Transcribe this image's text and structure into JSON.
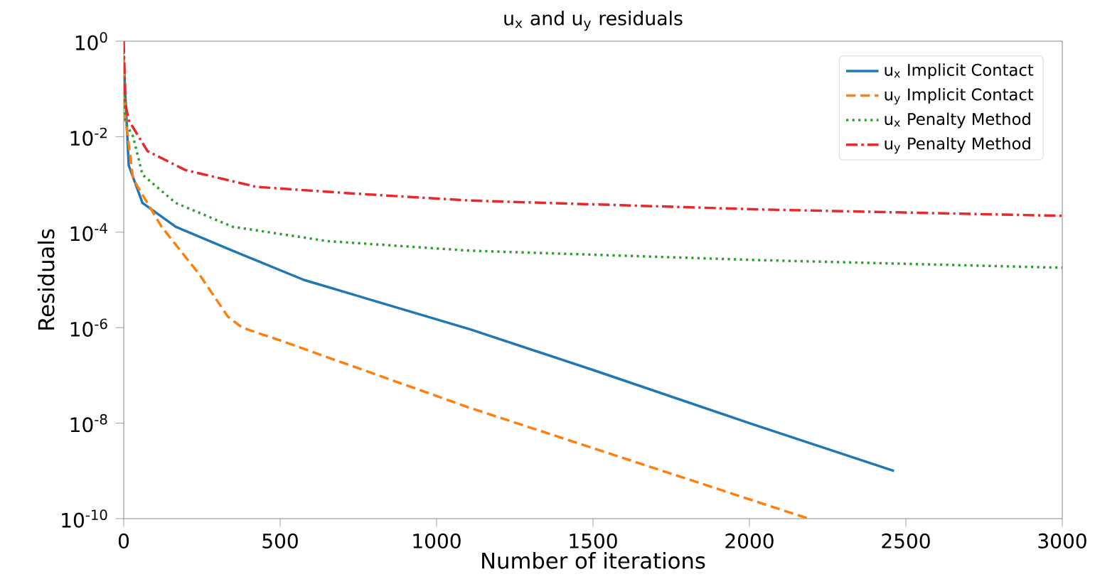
{
  "chart_data": {
    "type": "line",
    "title": "u$_{x}$ and u$_{y}$ residuals",
    "xlabel": "Number of iterations",
    "ylabel": "Residuals",
    "log": "y",
    "legend": "top right",
    "grid": false,
    "marker": "none",
    "xlim": [
      0,
      3000
    ],
    "xticks": [
      0,
      500,
      1000,
      1500,
      2000,
      2500,
      3000
    ],
    "ylim": [
      1e-10,
      1
    ],
    "yticks": [
      {
        "value": 1e-10,
        "label": "10$^{-10}$"
      },
      {
        "value": 1e-08,
        "label": "10$^{-8}$"
      },
      {
        "value": 1e-06,
        "label": "10$^{-6}$"
      },
      {
        "value": 0.0001,
        "label": "10$^{-4}$"
      },
      {
        "value": 0.01,
        "label": "10$^{-2}$"
      },
      {
        "value": 1,
        "label": "10$^{0}$"
      }
    ],
    "series": [
      {
        "name": "u$_{x}$ Implicit Contact",
        "color": "#1f77b4",
        "line_style": "solid",
        "x": [
          0,
          5,
          16,
          60,
          166,
          348,
          576,
          1106,
          1500,
          2000,
          2462
        ],
        "values": [
          0.5,
          0.078,
          0.0025,
          0.00041,
          0.00013,
          4.1e-05,
          1e-05,
          9.3e-07,
          1.3e-07,
          1e-08,
          1e-09
        ]
      },
      {
        "name": "u$_{y}$ Implicit Contact",
        "color": "#ff7f0e",
        "line_style": "dashed",
        "x": [
          0,
          5,
          30,
          121,
          242,
          333,
          379,
          500,
          1106,
          1500,
          2189
        ],
        "values": [
          0.5,
          0.025,
          0.0013,
          0.00013,
          1.3e-05,
          1.7e-06,
          1e-06,
          5.4e-07,
          2.1e-08,
          3e-09,
          1e-10
        ]
      },
      {
        "name": "u$_{x}$ Penalty Method",
        "color": "#2ca02c",
        "line_style": "dotted",
        "x": [
          0,
          5,
          30,
          60,
          166,
          348,
          651,
          1106,
          2030,
          3000
        ],
        "values": [
          0.6,
          0.02,
          0.01,
          0.0016,
          0.00041,
          0.00013,
          6.5e-05,
          4.1e-05,
          2.6e-05,
          1.8e-05
        ]
      },
      {
        "name": "u$_{y}$ Penalty Method",
        "color": "#e8282a",
        "line_style": "dashdot",
        "x": [
          0,
          5,
          16,
          76,
          197,
          424,
          727,
          1106,
          2030,
          3000
        ],
        "values": [
          1,
          0.05,
          0.022,
          0.005,
          0.002,
          0.00089,
          0.00065,
          0.00046,
          0.0003,
          0.00022
        ]
      }
    ]
  }
}
